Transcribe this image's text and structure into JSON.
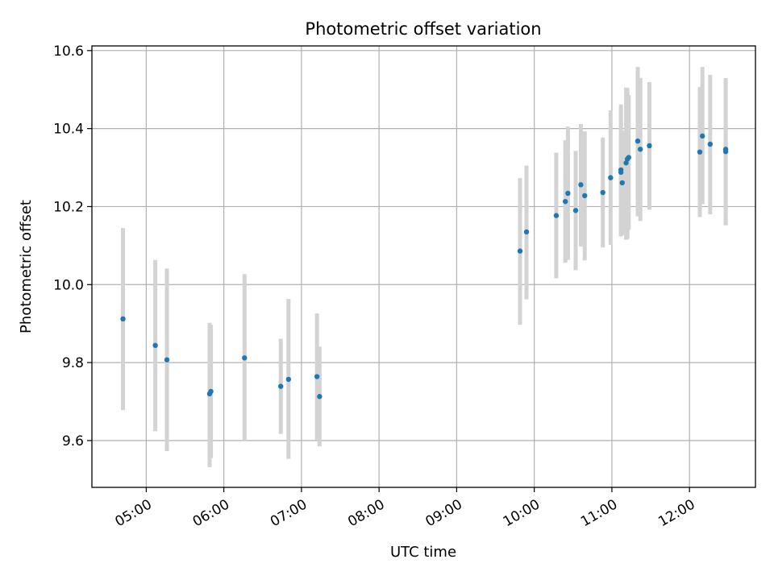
{
  "chart_data": {
    "type": "scatter",
    "title": "Photometric offset variation",
    "xlabel": "UTC time",
    "ylabel": "Photometric offset",
    "x_unit": "UTC time of day (HH:MM)",
    "xlim": [
      "04:18",
      "12:51"
    ],
    "ylim": [
      9.48,
      10.612
    ],
    "x_ticks": [
      "05:00",
      "06:00",
      "07:00",
      "08:00",
      "09:00",
      "10:00",
      "11:00",
      "12:00"
    ],
    "y_ticks": [
      9.6,
      9.8,
      10.0,
      10.2,
      10.4,
      10.6
    ],
    "y_tick_labels": [
      "9.6",
      "9.8",
      "10.0",
      "10.2",
      "10.4",
      "10.6"
    ],
    "grid": true,
    "errorbar_color": "#d3d3d3",
    "marker_color": "#1f77b4",
    "points": [
      {
        "x": "04:42",
        "y": 9.912,
        "lo": 9.678,
        "hi": 10.145
      },
      {
        "x": "05:07",
        "y": 9.844,
        "lo": 9.624,
        "hi": 10.063
      },
      {
        "x": "05:16",
        "y": 9.807,
        "lo": 9.573,
        "hi": 10.041
      },
      {
        "x": "05:49",
        "y": 9.72,
        "lo": 9.532,
        "hi": 9.902
      },
      {
        "x": "05:50",
        "y": 9.726,
        "lo": 9.555,
        "hi": 9.897
      },
      {
        "x": "06:16",
        "y": 9.812,
        "lo": 9.6,
        "hi": 10.027
      },
      {
        "x": "06:44",
        "y": 9.739,
        "lo": 9.617,
        "hi": 9.861
      },
      {
        "x": "06:50",
        "y": 9.757,
        "lo": 9.553,
        "hi": 9.963
      },
      {
        "x": "07:12",
        "y": 9.764,
        "lo": 9.602,
        "hi": 9.926
      },
      {
        "x": "07:14",
        "y": 9.713,
        "lo": 9.585,
        "hi": 9.841
      },
      {
        "x": "09:49",
        "y": 10.086,
        "lo": 9.897,
        "hi": 10.273
      },
      {
        "x": "09:54",
        "y": 10.135,
        "lo": 9.962,
        "hi": 10.305
      },
      {
        "x": "10:17",
        "y": 10.177,
        "lo": 10.016,
        "hi": 10.338
      },
      {
        "x": "10:24",
        "y": 10.213,
        "lo": 10.056,
        "hi": 10.37
      },
      {
        "x": "10:26",
        "y": 10.234,
        "lo": 10.063,
        "hi": 10.405
      },
      {
        "x": "10:32",
        "y": 10.19,
        "lo": 10.037,
        "hi": 10.343
      },
      {
        "x": "10:36",
        "y": 10.256,
        "lo": 10.098,
        "hi": 10.412
      },
      {
        "x": "10:39",
        "y": 10.228,
        "lo": 10.062,
        "hi": 10.393
      },
      {
        "x": "10:53",
        "y": 10.236,
        "lo": 10.095,
        "hi": 10.377
      },
      {
        "x": "10:59",
        "y": 10.274,
        "lo": 10.102,
        "hi": 10.447
      },
      {
        "x": "11:07",
        "y": 10.294,
        "lo": 10.124,
        "hi": 10.462
      },
      {
        "x": "11:07",
        "y": 10.288,
        "lo": 10.124,
        "hi": 10.452
      },
      {
        "x": "11:08",
        "y": 10.261,
        "lo": 10.127,
        "hi": 10.395
      },
      {
        "x": "11:11",
        "y": 10.312,
        "lo": 10.115,
        "hi": 10.505
      },
      {
        "x": "11:12",
        "y": 10.322,
        "lo": 10.117,
        "hi": 10.504
      },
      {
        "x": "11:13",
        "y": 10.326,
        "lo": 10.14,
        "hi": 10.486
      },
      {
        "x": "11:20",
        "y": 10.368,
        "lo": 10.175,
        "hi": 10.558
      },
      {
        "x": "11:22",
        "y": 10.347,
        "lo": 10.163,
        "hi": 10.53
      },
      {
        "x": "11:29",
        "y": 10.356,
        "lo": 10.192,
        "hi": 10.519
      },
      {
        "x": "12:08",
        "y": 10.34,
        "lo": 10.173,
        "hi": 10.507
      },
      {
        "x": "12:10",
        "y": 10.381,
        "lo": 10.206,
        "hi": 10.558
      },
      {
        "x": "12:16",
        "y": 10.36,
        "lo": 10.18,
        "hi": 10.538
      },
      {
        "x": "12:28",
        "y": 10.347,
        "lo": 10.152,
        "hi": 10.529
      },
      {
        "x": "12:28",
        "y": 10.341,
        "lo": 10.152,
        "hi": 10.529
      }
    ]
  }
}
